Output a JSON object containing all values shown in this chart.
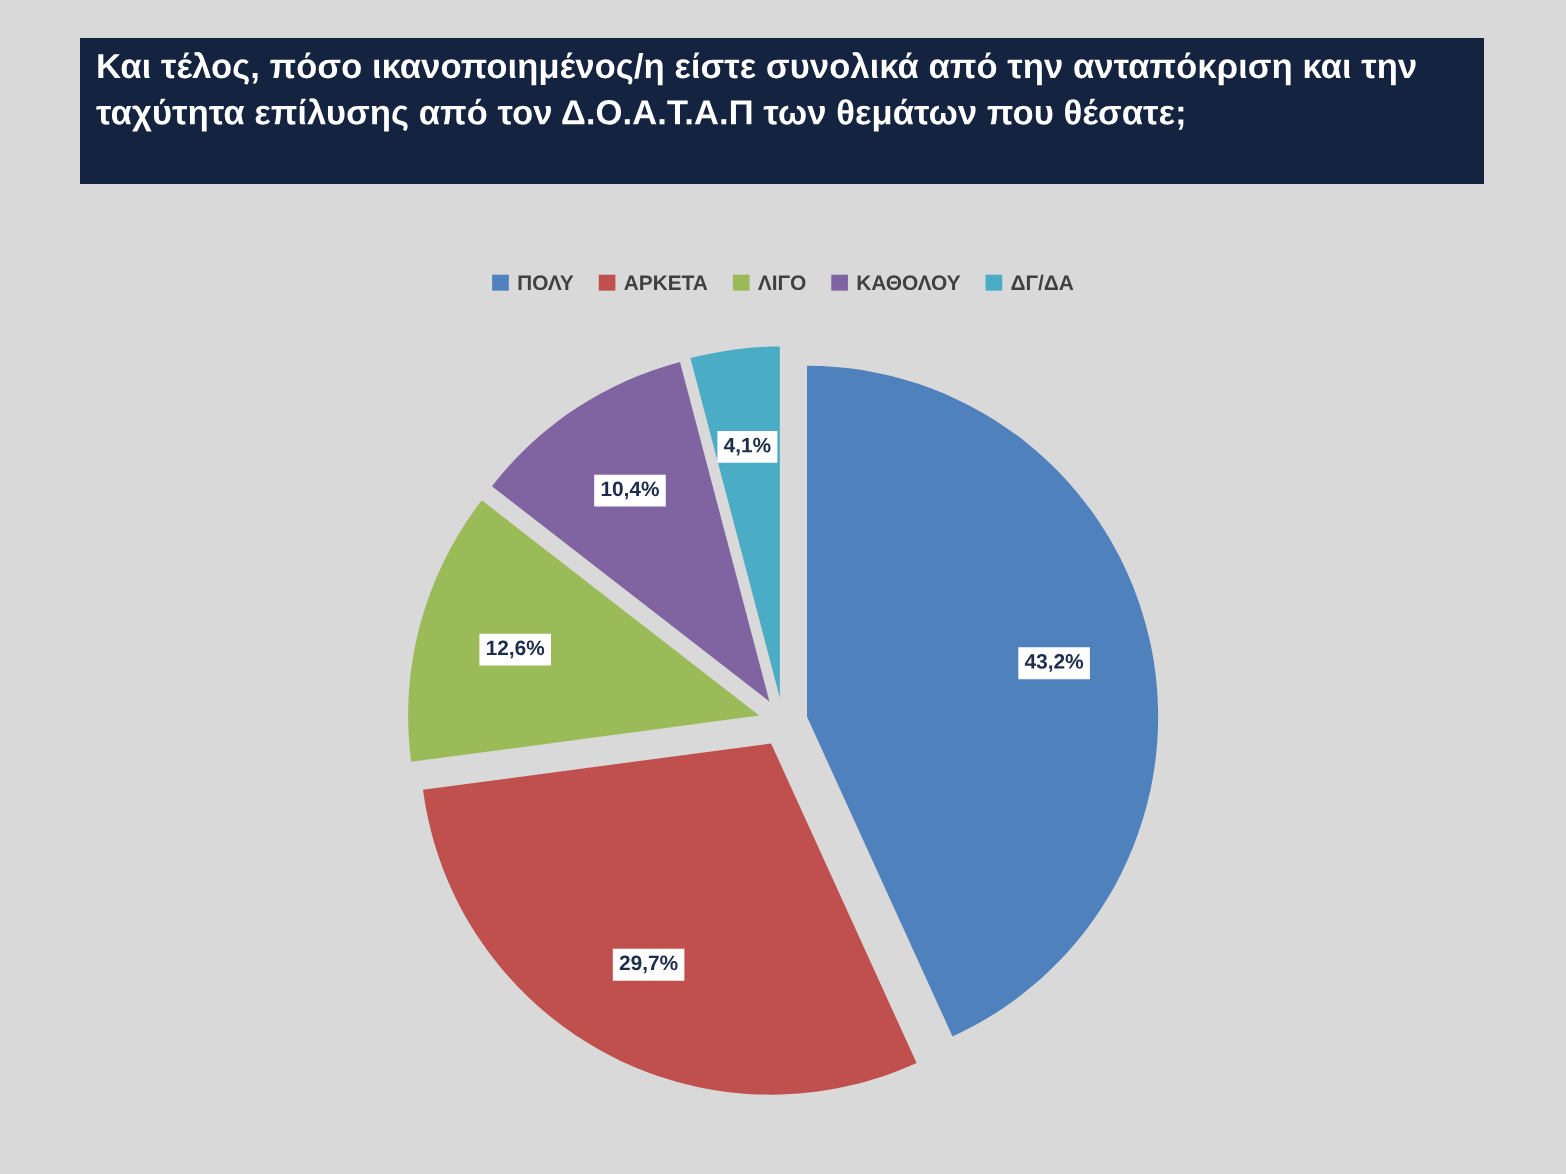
{
  "chart_data": {
    "type": "pie",
    "title": "Και τέλος, πόσο ικανοποιημένος/η είστε συνολικά από την ανταπόκριση και την ταχύτητα επίλυσης από τον Δ.Ο.Α.Τ.Α.Π των θεμάτων που θέσατε;",
    "categories": [
      "ΠΟΛΥ",
      "ΑΡΚΕΤΑ",
      "ΛΙΓΟ",
      "ΚΑΘΟΛΟΥ",
      "ΔΓ/ΔΑ"
    ],
    "values": [
      43.2,
      29.7,
      12.6,
      10.4,
      4.1
    ],
    "colors": [
      "#4f81bd",
      "#c0504d",
      "#9bbb59",
      "#8064a2",
      "#4bacc6"
    ],
    "value_labels": [
      "43,2%",
      "29,7%",
      "12,6%",
      "10,4%",
      "4,1%"
    ],
    "legend": "top"
  }
}
